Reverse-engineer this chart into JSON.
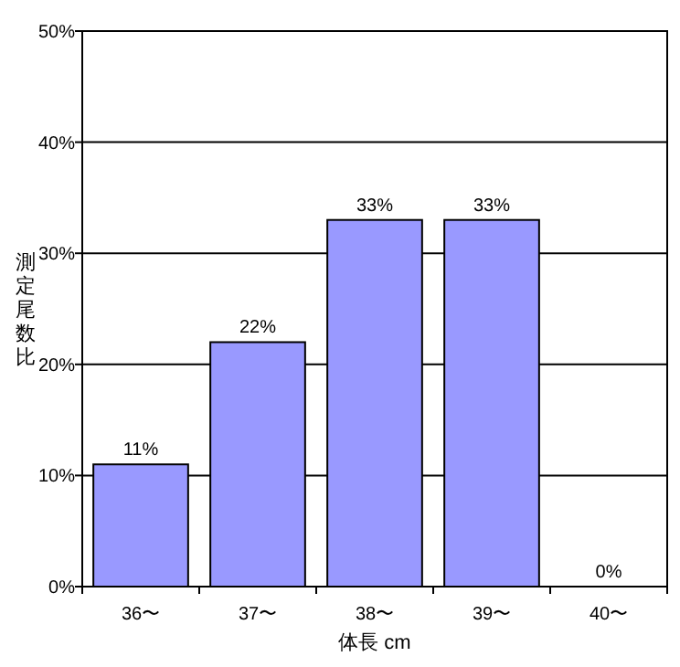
{
  "chart_data": {
    "type": "bar",
    "xlabel": "体長 cm",
    "ylabel": "測定尾数比",
    "categories": [
      "36〜",
      "37〜",
      "38〜",
      "39〜",
      "40〜"
    ],
    "values": [
      11,
      22,
      33,
      33,
      0
    ],
    "value_labels": [
      "11%",
      "22%",
      "33%",
      "33%",
      "0%"
    ],
    "color": "#9999ff",
    "ylim": [
      0,
      50
    ],
    "yticks": [
      {
        "value": 0,
        "label": "0%"
      },
      {
        "value": 10,
        "label": "10%"
      },
      {
        "value": 20,
        "label": "20%"
      },
      {
        "value": 30,
        "label": "30%"
      },
      {
        "value": 40,
        "label": "40%"
      },
      {
        "value": 50,
        "label": "50%"
      }
    ],
    "grid": "y"
  }
}
